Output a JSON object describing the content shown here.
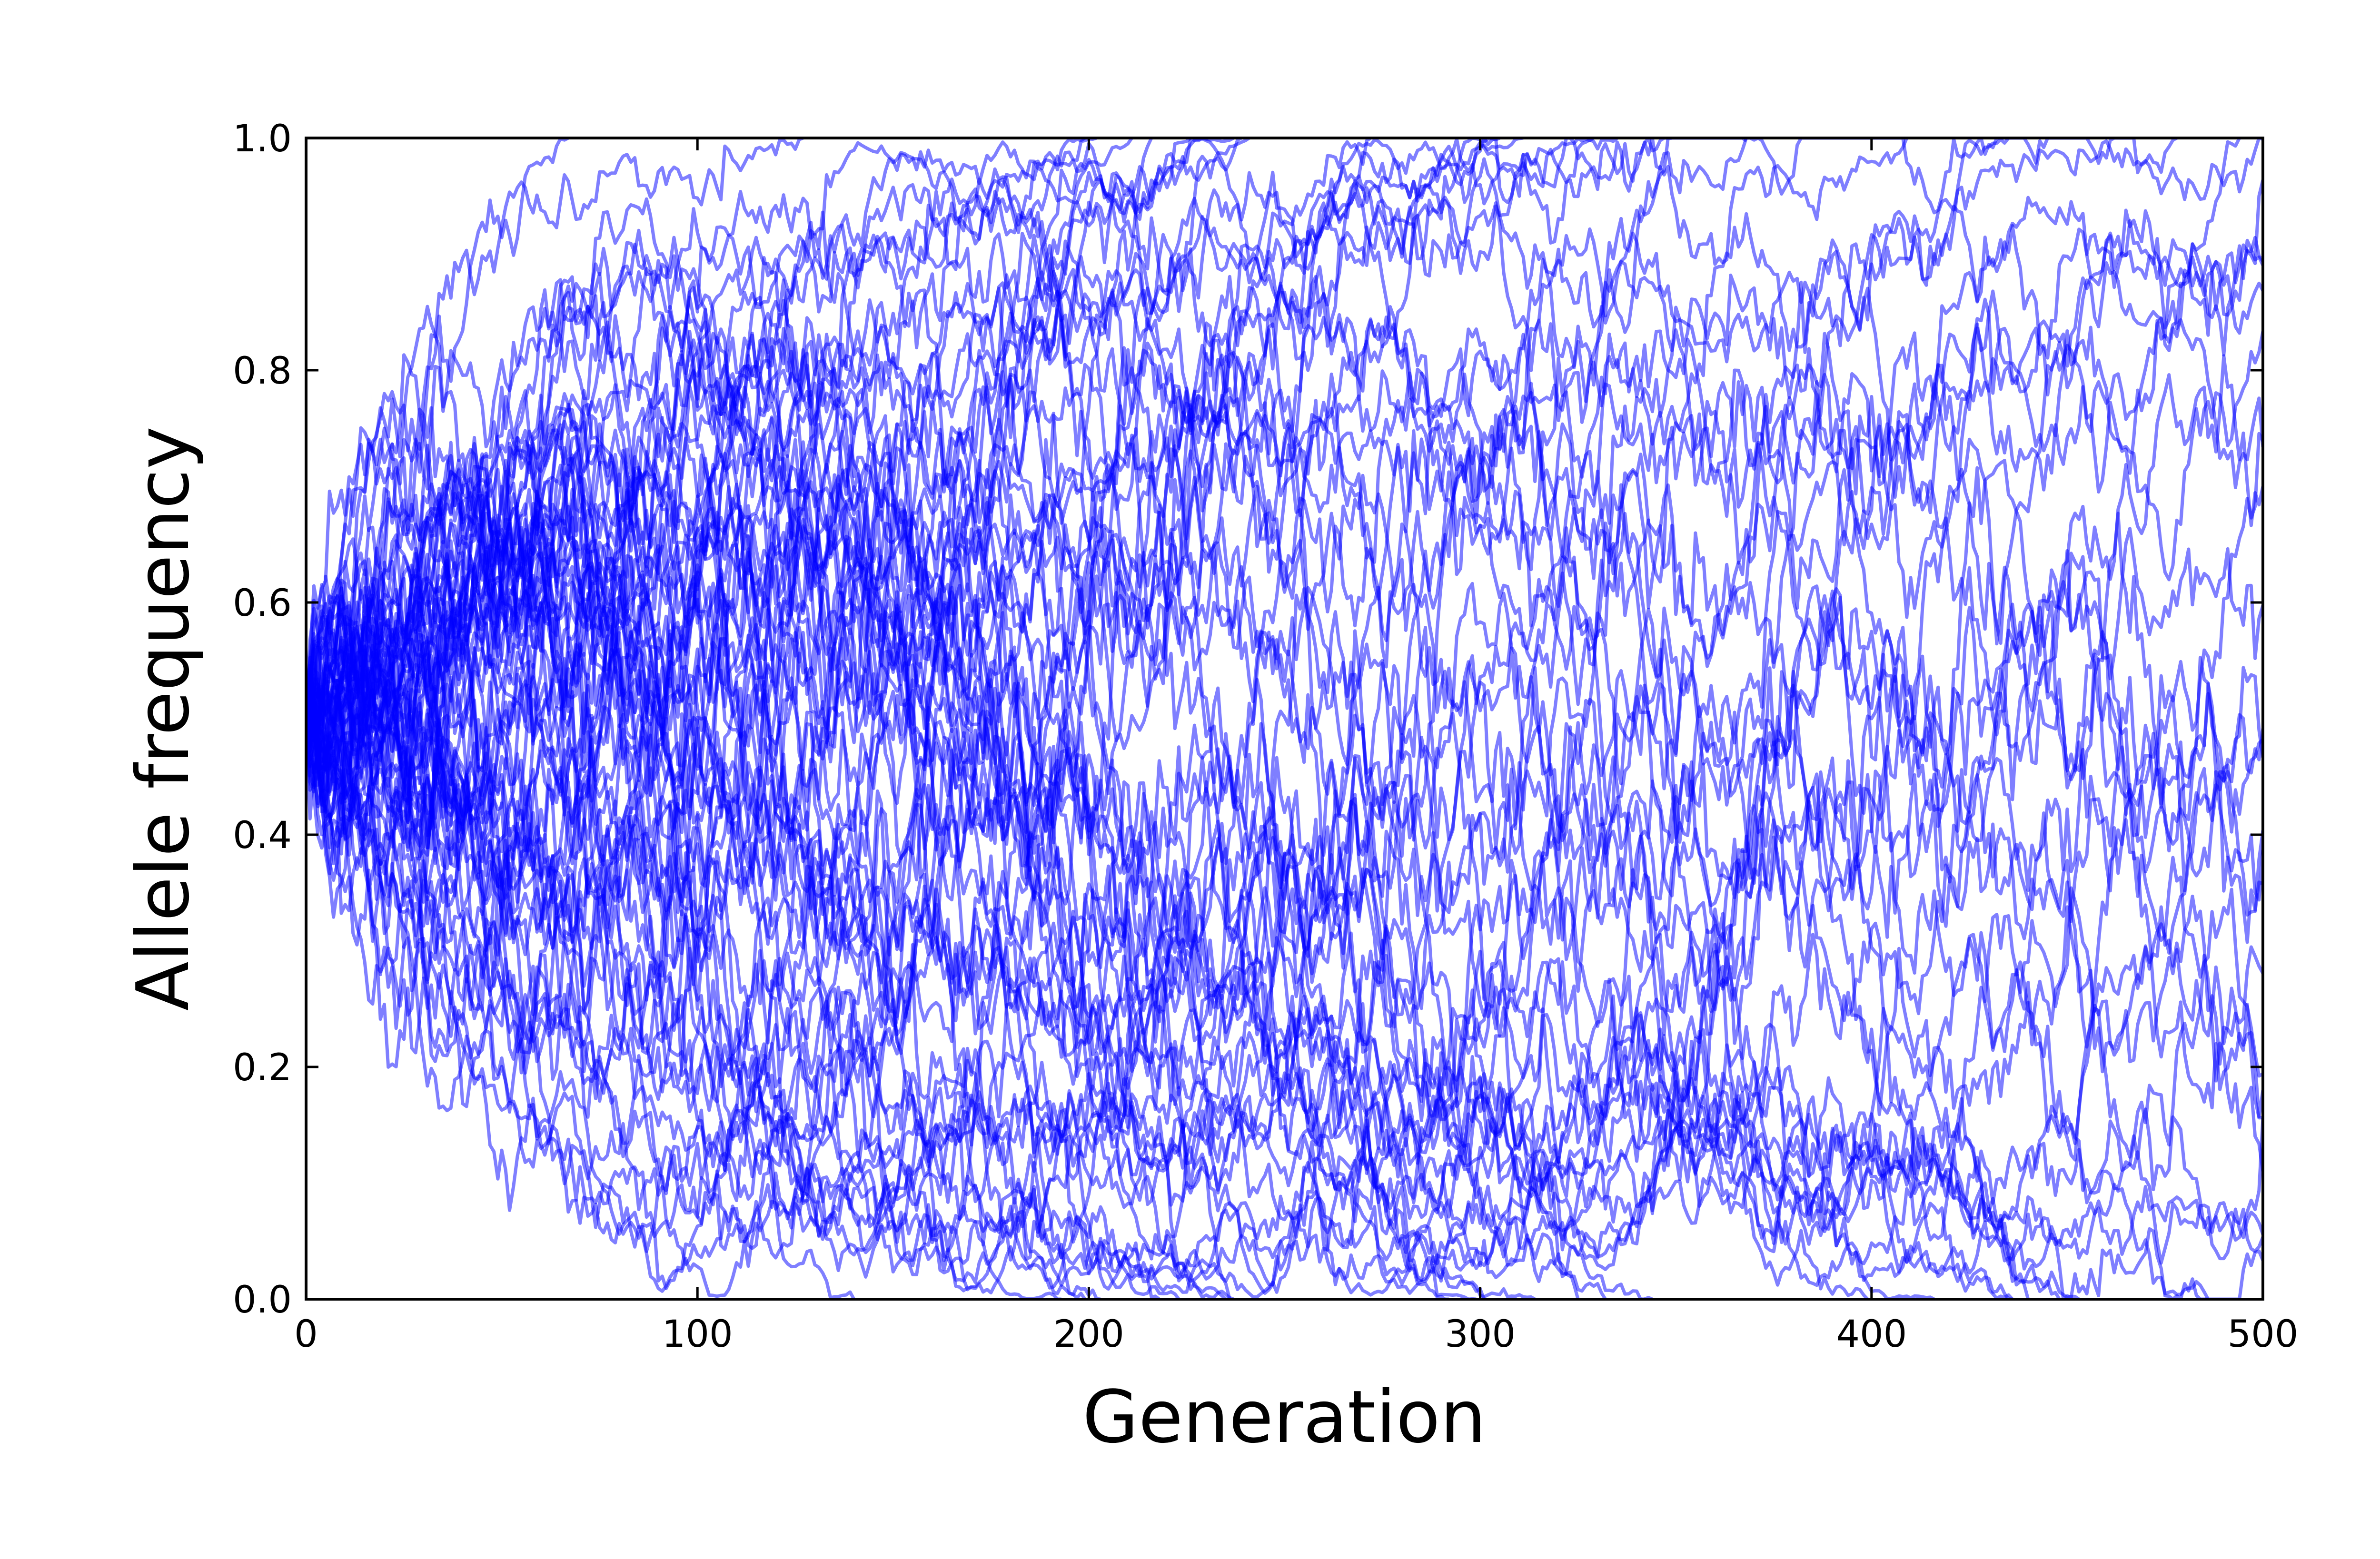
{
  "chart_data": {
    "type": "line",
    "title": "",
    "xlabel": "Generation",
    "ylabel": "Allele frequency",
    "xlim": [
      0,
      500
    ],
    "ylim": [
      0.0,
      1.0
    ],
    "x_ticks": [
      "0",
      "100",
      "200",
      "300",
      "400",
      "500"
    ],
    "y_ticks": [
      "0.0",
      "0.2",
      "0.4",
      "0.6",
      "0.8",
      "1.0"
    ],
    "grid": false,
    "legend": "none",
    "line_color": "#0000ff",
    "line_opacity": 0.5,
    "initial_frequency": 0.5,
    "n_trajectories": 70,
    "generations": 500,
    "series": [
      {
        "x": [
          0,
          50,
          100,
          150,
          200,
          250,
          300,
          350,
          400,
          450,
          500
        ],
        "values": [
          0.5,
          0.76,
          0.78,
          0.76,
          0.85,
          0.9,
          0.97,
          0.98,
          0.99,
          0.99,
          0.99
        ]
      },
      {
        "x": [
          0,
          50,
          100,
          150,
          200,
          250,
          300,
          350,
          368
        ],
        "values": [
          0.5,
          0.62,
          0.7,
          0.79,
          0.87,
          0.93,
          0.99,
          0.995,
          1.0
        ]
      },
      {
        "x": [
          0,
          50,
          100,
          150,
          200,
          250,
          300,
          350,
          400,
          450,
          500
        ],
        "values": [
          0.5,
          0.17,
          0.12,
          0.1,
          0.14,
          0.08,
          0.06,
          0.07,
          0.1,
          0.03,
          0.02
        ]
      },
      {
        "x": [
          0,
          50,
          100,
          150,
          200,
          250,
          300,
          350,
          400,
          450,
          500
        ],
        "values": [
          0.5,
          0.28,
          0.13,
          0.15,
          0.21,
          0.13,
          0.1,
          0.14,
          0.12,
          0.05,
          0.03
        ]
      },
      {
        "x": [
          0,
          50,
          100,
          150,
          200,
          250,
          300,
          350,
          400,
          450,
          500
        ],
        "values": [
          0.5,
          0.6,
          0.63,
          0.66,
          0.7,
          0.76,
          0.82,
          0.86,
          0.88,
          0.93,
          0.88
        ]
      }
    ]
  }
}
